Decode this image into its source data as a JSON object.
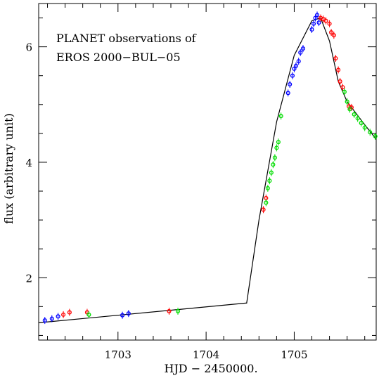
{
  "chart_data": {
    "type": "scatter",
    "title": "",
    "annotation_lines": [
      "PLANET observations of",
      "EROS 2000−BUL−05"
    ],
    "xlabel": "HJD  −  2450000.",
    "ylabel": "flux (arbitrary unit)",
    "xlim": [
      1702.1,
      1705.93
    ],
    "ylim": [
      0.92,
      6.75
    ],
    "x_ticks": [
      1703,
      1704,
      1705
    ],
    "y_ticks": [
      2,
      4,
      6
    ],
    "x_minor_step": 0.2,
    "y_minor_step": 0.5,
    "grid": false,
    "legend": "none",
    "colors": {
      "blue": "#0000ff",
      "red": "#ff0000",
      "green": "#00dd00",
      "model": "#000000"
    },
    "model_curve": {
      "x": [
        1702.1,
        1704.45,
        1704.46,
        1704.6,
        1704.8,
        1705.0,
        1705.2,
        1705.3,
        1705.4,
        1705.5,
        1705.6,
        1705.7,
        1705.8,
        1705.93
      ],
      "y": [
        1.22,
        1.56,
        1.56,
        3.0,
        4.7,
        5.85,
        6.45,
        6.5,
        6.1,
        5.4,
        5.05,
        4.85,
        4.65,
        4.4
      ]
    },
    "series": [
      {
        "color_key": "blue",
        "x": [
          1702.17,
          1702.25,
          1702.32,
          1703.05,
          1703.12,
          1704.93,
          1704.95,
          1704.98,
          1705.0,
          1705.02,
          1705.05,
          1705.07,
          1705.1,
          1705.2,
          1705.22,
          1705.24,
          1705.26,
          1705.28
        ],
        "y": [
          1.26,
          1.29,
          1.33,
          1.35,
          1.38,
          5.2,
          5.35,
          5.5,
          5.62,
          5.67,
          5.75,
          5.9,
          5.97,
          6.3,
          6.4,
          6.5,
          6.55,
          6.42
        ]
      },
      {
        "color_key": "red",
        "x": [
          1702.38,
          1702.45,
          1702.65,
          1703.58,
          1704.65,
          1704.68,
          1705.3,
          1705.33,
          1705.36,
          1705.4,
          1705.42,
          1705.45,
          1705.47,
          1705.5,
          1705.52,
          1705.55,
          1705.62,
          1705.65
        ],
        "y": [
          1.36,
          1.4,
          1.4,
          1.42,
          3.18,
          3.38,
          6.5,
          6.48,
          6.45,
          6.4,
          6.25,
          6.2,
          5.8,
          5.6,
          5.4,
          5.3,
          4.97,
          4.95
        ]
      },
      {
        "color_key": "green",
        "x": [
          1702.67,
          1703.68,
          1704.68,
          1704.7,
          1704.72,
          1704.74,
          1704.76,
          1704.78,
          1704.8,
          1704.82,
          1704.85,
          1705.57,
          1705.6,
          1705.63,
          1705.68,
          1705.72,
          1705.76,
          1705.8,
          1705.86,
          1705.92
        ],
        "y": [
          1.36,
          1.42,
          3.3,
          3.55,
          3.68,
          3.82,
          3.96,
          4.08,
          4.25,
          4.35,
          4.8,
          5.22,
          5.05,
          4.92,
          4.83,
          4.76,
          4.68,
          4.6,
          4.52,
          4.45
        ]
      }
    ]
  }
}
